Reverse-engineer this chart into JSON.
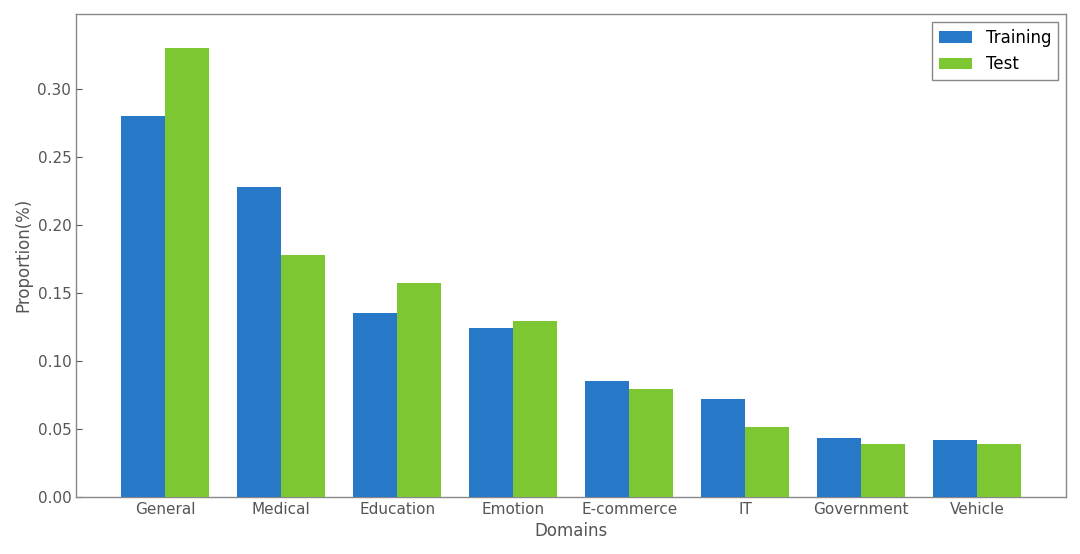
{
  "categories": [
    "General",
    "Medical",
    "Education",
    "Emotion",
    "E-commerce",
    "IT",
    "Government",
    "Vehicle"
  ],
  "training": [
    0.28,
    0.228,
    0.135,
    0.124,
    0.085,
    0.072,
    0.043,
    0.042
  ],
  "test": [
    0.33,
    0.178,
    0.157,
    0.129,
    0.079,
    0.051,
    0.039,
    0.039
  ],
  "training_color": "#2878c8",
  "test_color": "#7dc832",
  "xlabel": "Domains",
  "ylabel": "Proportion(%)",
  "legend_labels": [
    "Training",
    "Test"
  ],
  "ylim": [
    0,
    0.355
  ],
  "yticks": [
    0.0,
    0.05,
    0.1,
    0.15,
    0.2,
    0.25,
    0.3
  ],
  "bar_width": 0.38,
  "background_color": "#ffffff",
  "spine_color": "#888888",
  "tick_color": "#555555",
  "label_fontsize": 12,
  "tick_fontsize": 11
}
